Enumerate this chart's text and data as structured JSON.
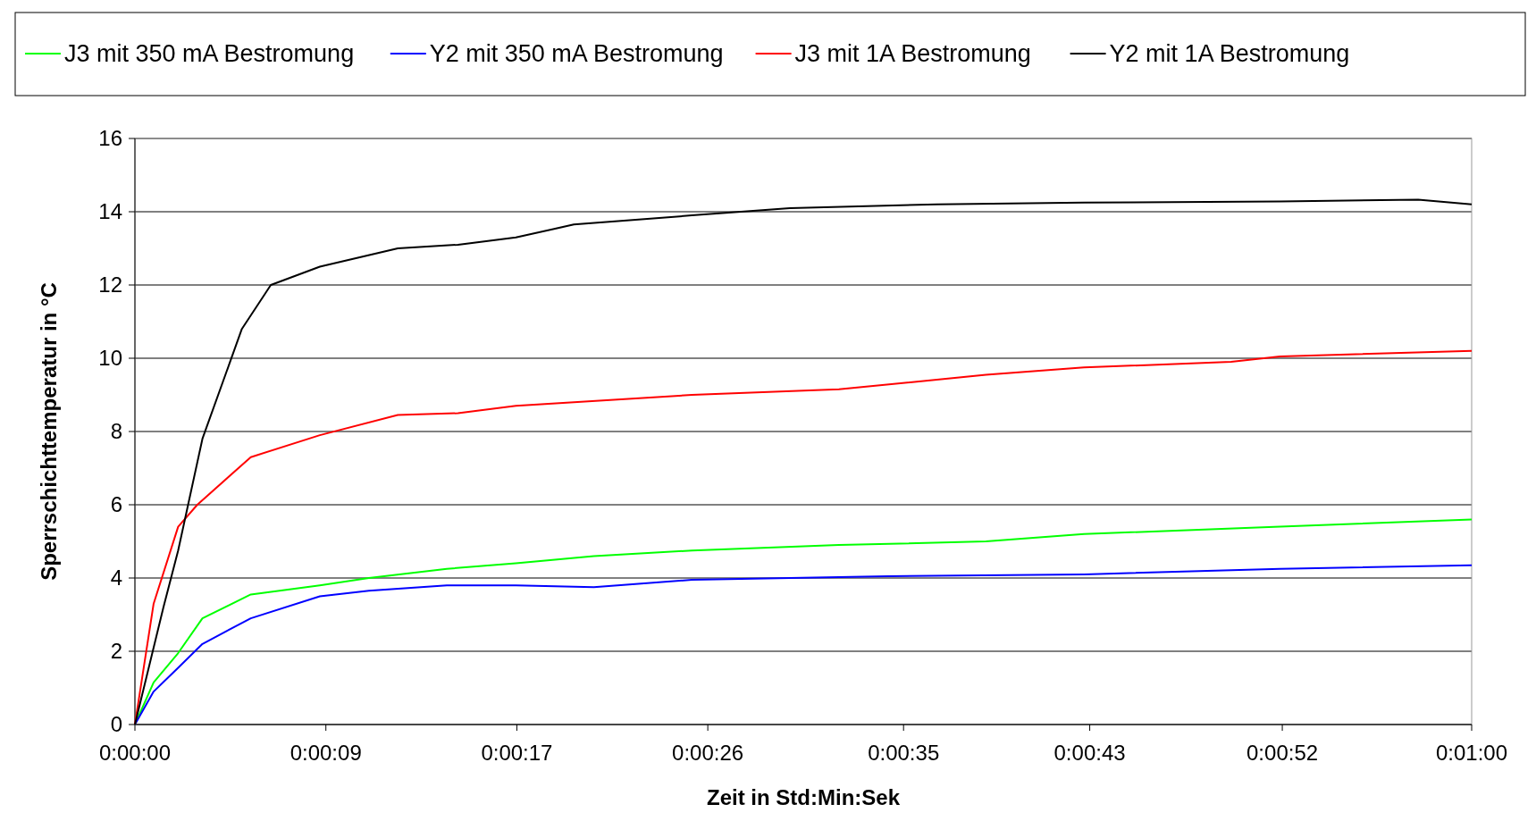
{
  "chart_data": {
    "type": "line",
    "xlabel": "Zeit in Std:Min:Sek",
    "ylabel": "Sperrschichttemperatur in °C",
    "xlim": [
      0,
      60
    ],
    "xticks": [
      {
        "value": 0,
        "label": "0:00:00"
      },
      {
        "value": 8.571,
        "label": "0:00:09"
      },
      {
        "value": 17.143,
        "label": "0:00:17"
      },
      {
        "value": 25.714,
        "label": "0:00:26"
      },
      {
        "value": 34.5,
        "label": "0:00:35"
      },
      {
        "value": 42.857,
        "label": "0:00:43"
      },
      {
        "value": 51.5,
        "label": "0:00:52"
      },
      {
        "value": 60,
        "label": "0:01:00"
      }
    ],
    "ylim": [
      0,
      16
    ],
    "yticks": [
      0,
      2,
      4,
      6,
      8,
      10,
      12,
      14,
      16
    ],
    "grid": "y",
    "legend": "top",
    "marker": "none",
    "line_style": "solid",
    "series": [
      {
        "name": "J3 mit 350 mA Bestromung",
        "color": "#00ff00",
        "x": [
          0,
          0.84,
          1.94,
          3.03,
          5.2,
          8.3,
          10.5,
          14,
          17.1,
          20.6,
          25,
          31.6,
          38.2,
          42.6,
          51.4,
          60
        ],
        "values": [
          0,
          1.15,
          1.95,
          2.9,
          3.55,
          3.8,
          4.0,
          4.25,
          4.4,
          4.6,
          4.75,
          4.9,
          5.0,
          5.2,
          5.4,
          5.6
        ]
      },
      {
        "name": "Y2 mit 350 mA Bestromung",
        "color": "#0000ff",
        "x": [
          0,
          0.84,
          1.94,
          3.03,
          5.2,
          8.3,
          10.5,
          14,
          17.1,
          20.6,
          25,
          33.8,
          42.6,
          51.4,
          60
        ],
        "values": [
          0,
          0.9,
          1.55,
          2.2,
          2.9,
          3.5,
          3.65,
          3.8,
          3.8,
          3.75,
          3.95,
          4.05,
          4.1,
          4.25,
          4.35
        ]
      },
      {
        "name": "J3 mit 1A Bestromung",
        "color": "#ff0000",
        "x": [
          0,
          0.84,
          1.94,
          2.8,
          5.2,
          8.3,
          11.8,
          14.5,
          17.1,
          25,
          31.6,
          38.2,
          42.6,
          49.2,
          51.4,
          60
        ],
        "values": [
          0,
          3.3,
          5.4,
          6,
          7.3,
          7.9,
          8.45,
          8.5,
          8.7,
          9.0,
          9.15,
          9.55,
          9.75,
          9.9,
          10.05,
          10.2
        ]
      },
      {
        "name": "Y2 mit 1A Bestromung",
        "color": "#000000",
        "x": [
          0,
          1.28,
          1.94,
          3.03,
          4.8,
          6.1,
          8.3,
          11.8,
          14.5,
          17.1,
          19.7,
          25,
          29.4,
          36,
          42.6,
          51.4,
          57.6,
          60
        ],
        "values": [
          0,
          3.2,
          4.75,
          7.8,
          10.8,
          12,
          12.5,
          13,
          13.1,
          13.3,
          13.65,
          13.9,
          14.1,
          14.2,
          14.25,
          14.28,
          14.33,
          14.2
        ]
      }
    ]
  }
}
